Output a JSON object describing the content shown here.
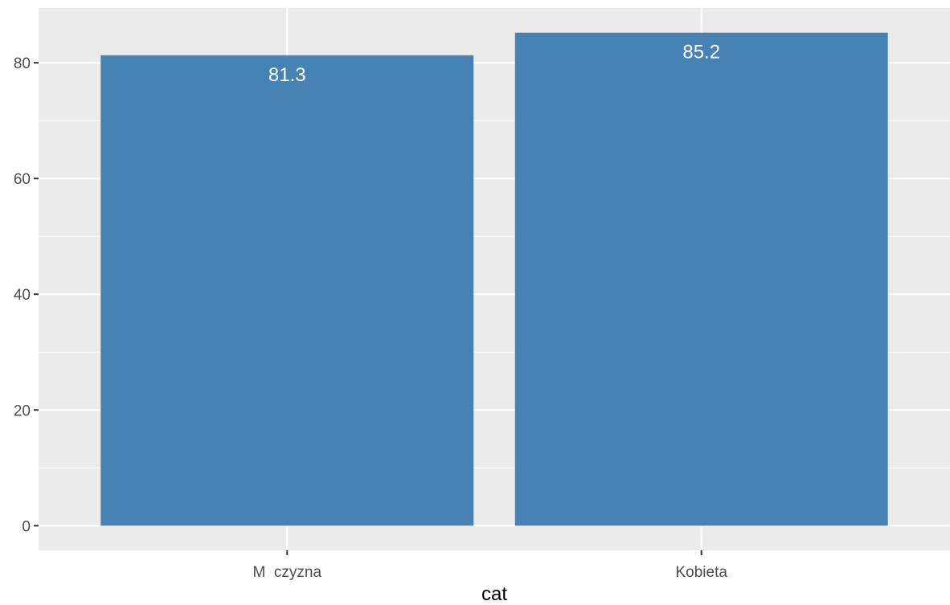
{
  "chart_data": {
    "type": "bar",
    "categories": [
      "M  czyzna",
      "Kobieta"
    ],
    "values": [
      81.3,
      85.2
    ],
    "data_labels": [
      "81.3",
      "85.2"
    ],
    "xlabel": "cat",
    "ylabel": "",
    "ylim": [
      -4.26,
      89.46
    ],
    "yticks": [
      0,
      20,
      40,
      60,
      80
    ],
    "ytick_labels": [
      "0",
      "20",
      "40",
      "60",
      "80"
    ],
    "grid": true,
    "colors": {
      "bar": "#4682B4",
      "panel_background": "#EBEBEB",
      "grid_line": "#FFFFFF",
      "tick_text": "#4D4D4D",
      "tick_mark": "#333333",
      "data_label_text": "#FFFFFF"
    }
  }
}
